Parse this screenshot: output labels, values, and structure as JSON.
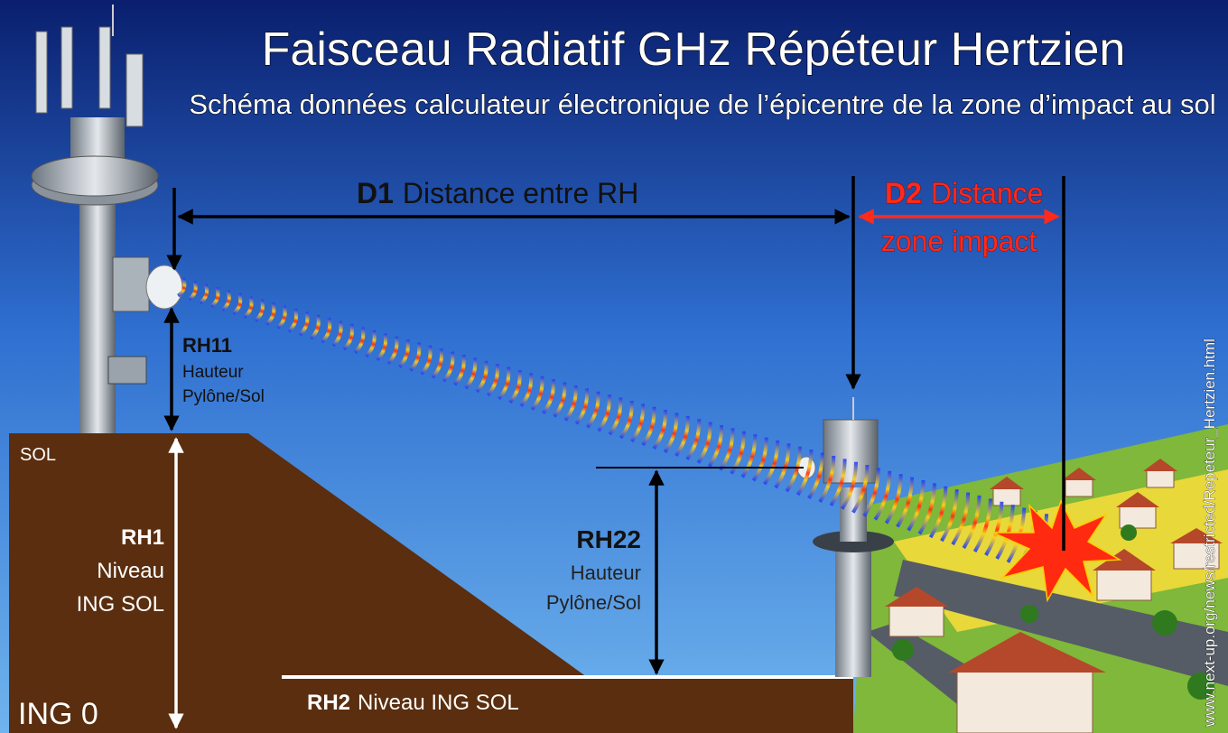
{
  "header": {
    "title": "Faisceau Radiatif GHz Répéteur Hertzien",
    "subtitle": "Schéma  données calculateur électronique de l’épicentre de la zone d’impact au sol"
  },
  "d1": {
    "code": "D1",
    "text": "Distance entre RH"
  },
  "d2": {
    "code": "D2",
    "line1": "Distance",
    "line2": "zone impact"
  },
  "rh11": {
    "code": "RH11",
    "line1": "Hauteur",
    "line2": "Pylône/Sol"
  },
  "sol": "SOL",
  "rh1": {
    "code": "RH1",
    "line1": "Niveau",
    "line2": "ING SOL"
  },
  "rh22": {
    "code": "RH22",
    "line1": "Hauteur",
    "line2": "Pylône/Sol"
  },
  "rh2": {
    "code": "RH2",
    "text": "Niveau ING SOL"
  },
  "ing0": "ING 0",
  "source": "www.next-up.org/news/restricted/Repeteur_Hertzien.html"
}
